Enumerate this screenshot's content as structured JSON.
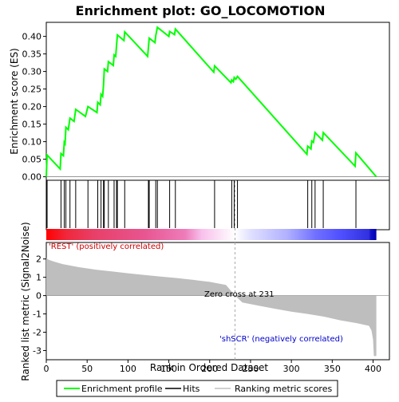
{
  "title": "Enrichment plot: GO_LOCOMOTION",
  "legend": {
    "items": [
      {
        "label": "Enrichment profile",
        "color": "#00ff00"
      },
      {
        "label": "Hits",
        "color": "#000000"
      },
      {
        "label": "Ranking metric scores",
        "color": "#c0c0c0"
      }
    ]
  },
  "colors": {
    "enrichment_line": "#00ff00",
    "hit_line": "#000000",
    "metric_fill": "#bebebe",
    "axis": "#000000",
    "positive_label": "#cc0000",
    "negative_label": "#0000cc",
    "zero_cross_line": "#aaaaaa"
  },
  "chart_data": [
    {
      "type": "line",
      "name": "enrichment",
      "title": "Enrichment plot: GO_LOCOMOTION",
      "ylabel": "Enrichment score (ES)",
      "xlim": [
        0,
        420
      ],
      "ylim": [
        -0.01,
        0.44
      ],
      "yticks": [
        "0.00",
        "0.05",
        "0.10",
        "0.15",
        "0.20",
        "0.25",
        "0.30",
        "0.35",
        "0.40"
      ],
      "ytick_values": [
        0.0,
        0.05,
        0.1,
        0.15,
        0.2,
        0.25,
        0.3,
        0.35,
        0.4
      ],
      "grid": false,
      "points": [
        [
          0,
          0.0
        ],
        [
          1,
          0.062
        ],
        [
          17,
          0.022
        ],
        [
          18,
          0.066
        ],
        [
          21,
          0.06
        ],
        [
          22,
          0.098
        ],
        [
          23,
          0.094
        ],
        [
          24,
          0.141
        ],
        [
          27,
          0.134
        ],
        [
          29,
          0.167
        ],
        [
          34,
          0.158
        ],
        [
          36,
          0.192
        ],
        [
          48,
          0.172
        ],
        [
          51,
          0.2
        ],
        [
          62,
          0.183
        ],
        [
          63,
          0.212
        ],
        [
          66,
          0.205
        ],
        [
          67,
          0.235
        ],
        [
          69,
          0.229
        ],
        [
          70,
          0.26
        ],
        [
          71,
          0.307
        ],
        [
          75,
          0.3
        ],
        [
          76,
          0.328
        ],
        [
          82,
          0.317
        ],
        [
          83,
          0.347
        ],
        [
          85,
          0.343
        ],
        [
          86,
          0.373
        ],
        [
          87,
          0.404
        ],
        [
          95,
          0.388
        ],
        [
          96,
          0.413
        ],
        [
          124,
          0.343
        ],
        [
          125,
          0.369
        ],
        [
          126,
          0.395
        ],
        [
          133,
          0.382
        ],
        [
          134,
          0.402
        ],
        [
          136,
          0.426
        ],
        [
          150,
          0.4
        ],
        [
          151,
          0.414
        ],
        [
          157,
          0.405
        ],
        [
          158,
          0.421
        ],
        [
          205,
          0.298
        ],
        [
          206,
          0.316
        ],
        [
          226,
          0.268
        ],
        [
          227,
          0.276
        ],
        [
          229,
          0.271
        ],
        [
          230,
          0.283
        ],
        [
          232,
          0.278
        ],
        [
          234,
          0.286
        ],
        [
          319,
          0.064
        ],
        [
          320,
          0.087
        ],
        [
          324,
          0.079
        ],
        [
          325,
          0.102
        ],
        [
          327,
          0.098
        ],
        [
          329,
          0.126
        ],
        [
          338,
          0.104
        ],
        [
          339,
          0.126
        ],
        [
          378,
          0.03
        ],
        [
          379,
          0.068
        ],
        [
          404,
          0.0
        ]
      ]
    },
    {
      "type": "scatter",
      "name": "hits",
      "positions": [
        1,
        18,
        22,
        24,
        29,
        36,
        51,
        63,
        67,
        70,
        71,
        76,
        83,
        86,
        87,
        96,
        125,
        126,
        134,
        136,
        151,
        158,
        206,
        227,
        230,
        234,
        320,
        325,
        329,
        339,
        379
      ]
    },
    {
      "type": "area",
      "name": "ranked_list_metric",
      "xlabel": "Rank in Ordered Dataset",
      "ylabel": "Ranked list metric (Signal2Noise)",
      "xlim": [
        0,
        420
      ],
      "ylim": [
        -3.5,
        2.9
      ],
      "xticks": [
        "0",
        "50",
        "100",
        "150",
        "200",
        "250",
        "300",
        "350",
        "400"
      ],
      "xtick_values": [
        0,
        50,
        100,
        150,
        200,
        250,
        300,
        350,
        400
      ],
      "yticks": [
        "-3",
        "-2",
        "-1",
        "0",
        "1",
        "2"
      ],
      "ytick_values": [
        -3,
        -2,
        -1,
        0,
        1,
        2
      ],
      "points": [
        [
          0,
          2.05
        ],
        [
          3,
          1.95
        ],
        [
          10,
          1.85
        ],
        [
          20,
          1.72
        ],
        [
          40,
          1.55
        ],
        [
          60,
          1.42
        ],
        [
          80,
          1.32
        ],
        [
          100,
          1.22
        ],
        [
          120,
          1.13
        ],
        [
          140,
          1.04
        ],
        [
          160,
          0.96
        ],
        [
          180,
          0.86
        ],
        [
          200,
          0.75
        ],
        [
          220,
          0.58
        ],
        [
          231,
          0.0
        ],
        [
          240,
          -0.38
        ],
        [
          260,
          -0.55
        ],
        [
          280,
          -0.72
        ],
        [
          300,
          -0.88
        ],
        [
          320,
          -1.0
        ],
        [
          340,
          -1.15
        ],
        [
          360,
          -1.35
        ],
        [
          380,
          -1.5
        ],
        [
          395,
          -1.65
        ],
        [
          398,
          -1.9
        ],
        [
          400,
          -2.4
        ],
        [
          401,
          -3.3
        ],
        [
          404,
          -3.3
        ]
      ],
      "zero_cross": 231,
      "zero_cross_label": "Zero cross at 231",
      "positive_label": "'REST' (positively correlated)",
      "negative_label": "'shSCR' (negatively correlated)"
    },
    {
      "type": "heatmap",
      "name": "rank_color_bar",
      "stops": [
        {
          "rank": 0,
          "color": "#ff0000"
        },
        {
          "rank": 25,
          "color": "#f0283c"
        },
        {
          "rank": 60,
          "color": "#e8406a"
        },
        {
          "rank": 120,
          "color": "#e85590"
        },
        {
          "rank": 170,
          "color": "#ee7cba"
        },
        {
          "rank": 190,
          "color": "#f8c0ec"
        },
        {
          "rank": 231,
          "color": "#ffffff"
        },
        {
          "rank": 250,
          "color": "#e0e0ff"
        },
        {
          "rank": 295,
          "color": "#b0b0ff"
        },
        {
          "rank": 330,
          "color": "#7070ff"
        },
        {
          "rank": 360,
          "color": "#5050ff"
        },
        {
          "rank": 395,
          "color": "#3030e0"
        },
        {
          "rank": 397,
          "color": "#1010c8"
        },
        {
          "rank": 404,
          "color": "#0000b0"
        }
      ]
    }
  ]
}
